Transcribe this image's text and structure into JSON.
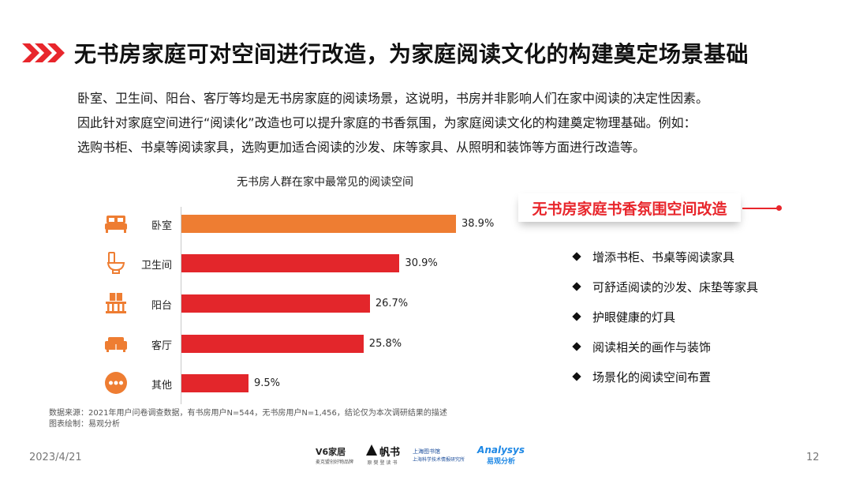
{
  "title": "无书房家庭可对空间进行改造，为家庭阅读文化的构建奠定场景基础",
  "description": [
    "卧室、卫生间、阳台、客厅等均是无书房家庭的阅读场景，这说明，书房并非影响人们在家中阅读的决定性因素。",
    "因此针对家庭空间进行“阅读化”改造也可以提升家庭的书香氛围，为家庭阅读文化的构建奠定物理基础。例如：",
    "选购书柜、书桌等阅读家具，选购更加适合阅读的沙发、床等家具、从照明和装饰等方面进行改造等。"
  ],
  "chart_data": {
    "type": "bar",
    "orientation": "horizontal",
    "title": "无书房人群在家中最常见的阅读空间",
    "categories": [
      "卧室",
      "卫生间",
      "阳台",
      "客厅",
      "其他"
    ],
    "values": [
      38.9,
      30.9,
      26.7,
      25.8,
      9.5
    ],
    "value_labels": [
      "38.9%",
      "30.9%",
      "26.7%",
      "25.8%",
      "9.5%"
    ],
    "unit": "%",
    "xlim": [
      0,
      40
    ],
    "colors": [
      "#ee7d32",
      "#e3262b",
      "#e3262b",
      "#e3262b",
      "#e3262b"
    ],
    "icon_color": "#ee7d32",
    "icons": [
      "bed-icon",
      "toilet-icon",
      "balcony-icon",
      "sofa-icon",
      "more-icon"
    ],
    "grid": false,
    "legend": "none"
  },
  "panel": {
    "tag": "无书房家庭书香氛围空间改造",
    "items": [
      "增添书柜、书桌等阅读家具",
      "可舒适阅读的沙发、床垫等家具",
      "护眼健康的灯具",
      "阅读相关的画作与装饰",
      "场景化的阅读空间布置"
    ]
  },
  "source": {
    "line1": "数据来源：2021年用户问卷调查数据，有书房用户N=544，无书房用户N=1,456，结论仅为本次调研结果的描述",
    "line2": "图表绘制：易观分析"
  },
  "footer": {
    "date": "2023/4/21",
    "page": "12",
    "logos": {
      "v6": "V6家居",
      "v6_sub": "麦克盟创好物品牌",
      "fanshu": "帆书",
      "fanshu_sub": "原樊登读书",
      "library_top": "上海图书馆",
      "library_bottom": "上海科学技术情报研究所",
      "analysys": "Analysys",
      "analysys_cn": "易观分析"
    }
  },
  "accent_color": "#e8262c"
}
